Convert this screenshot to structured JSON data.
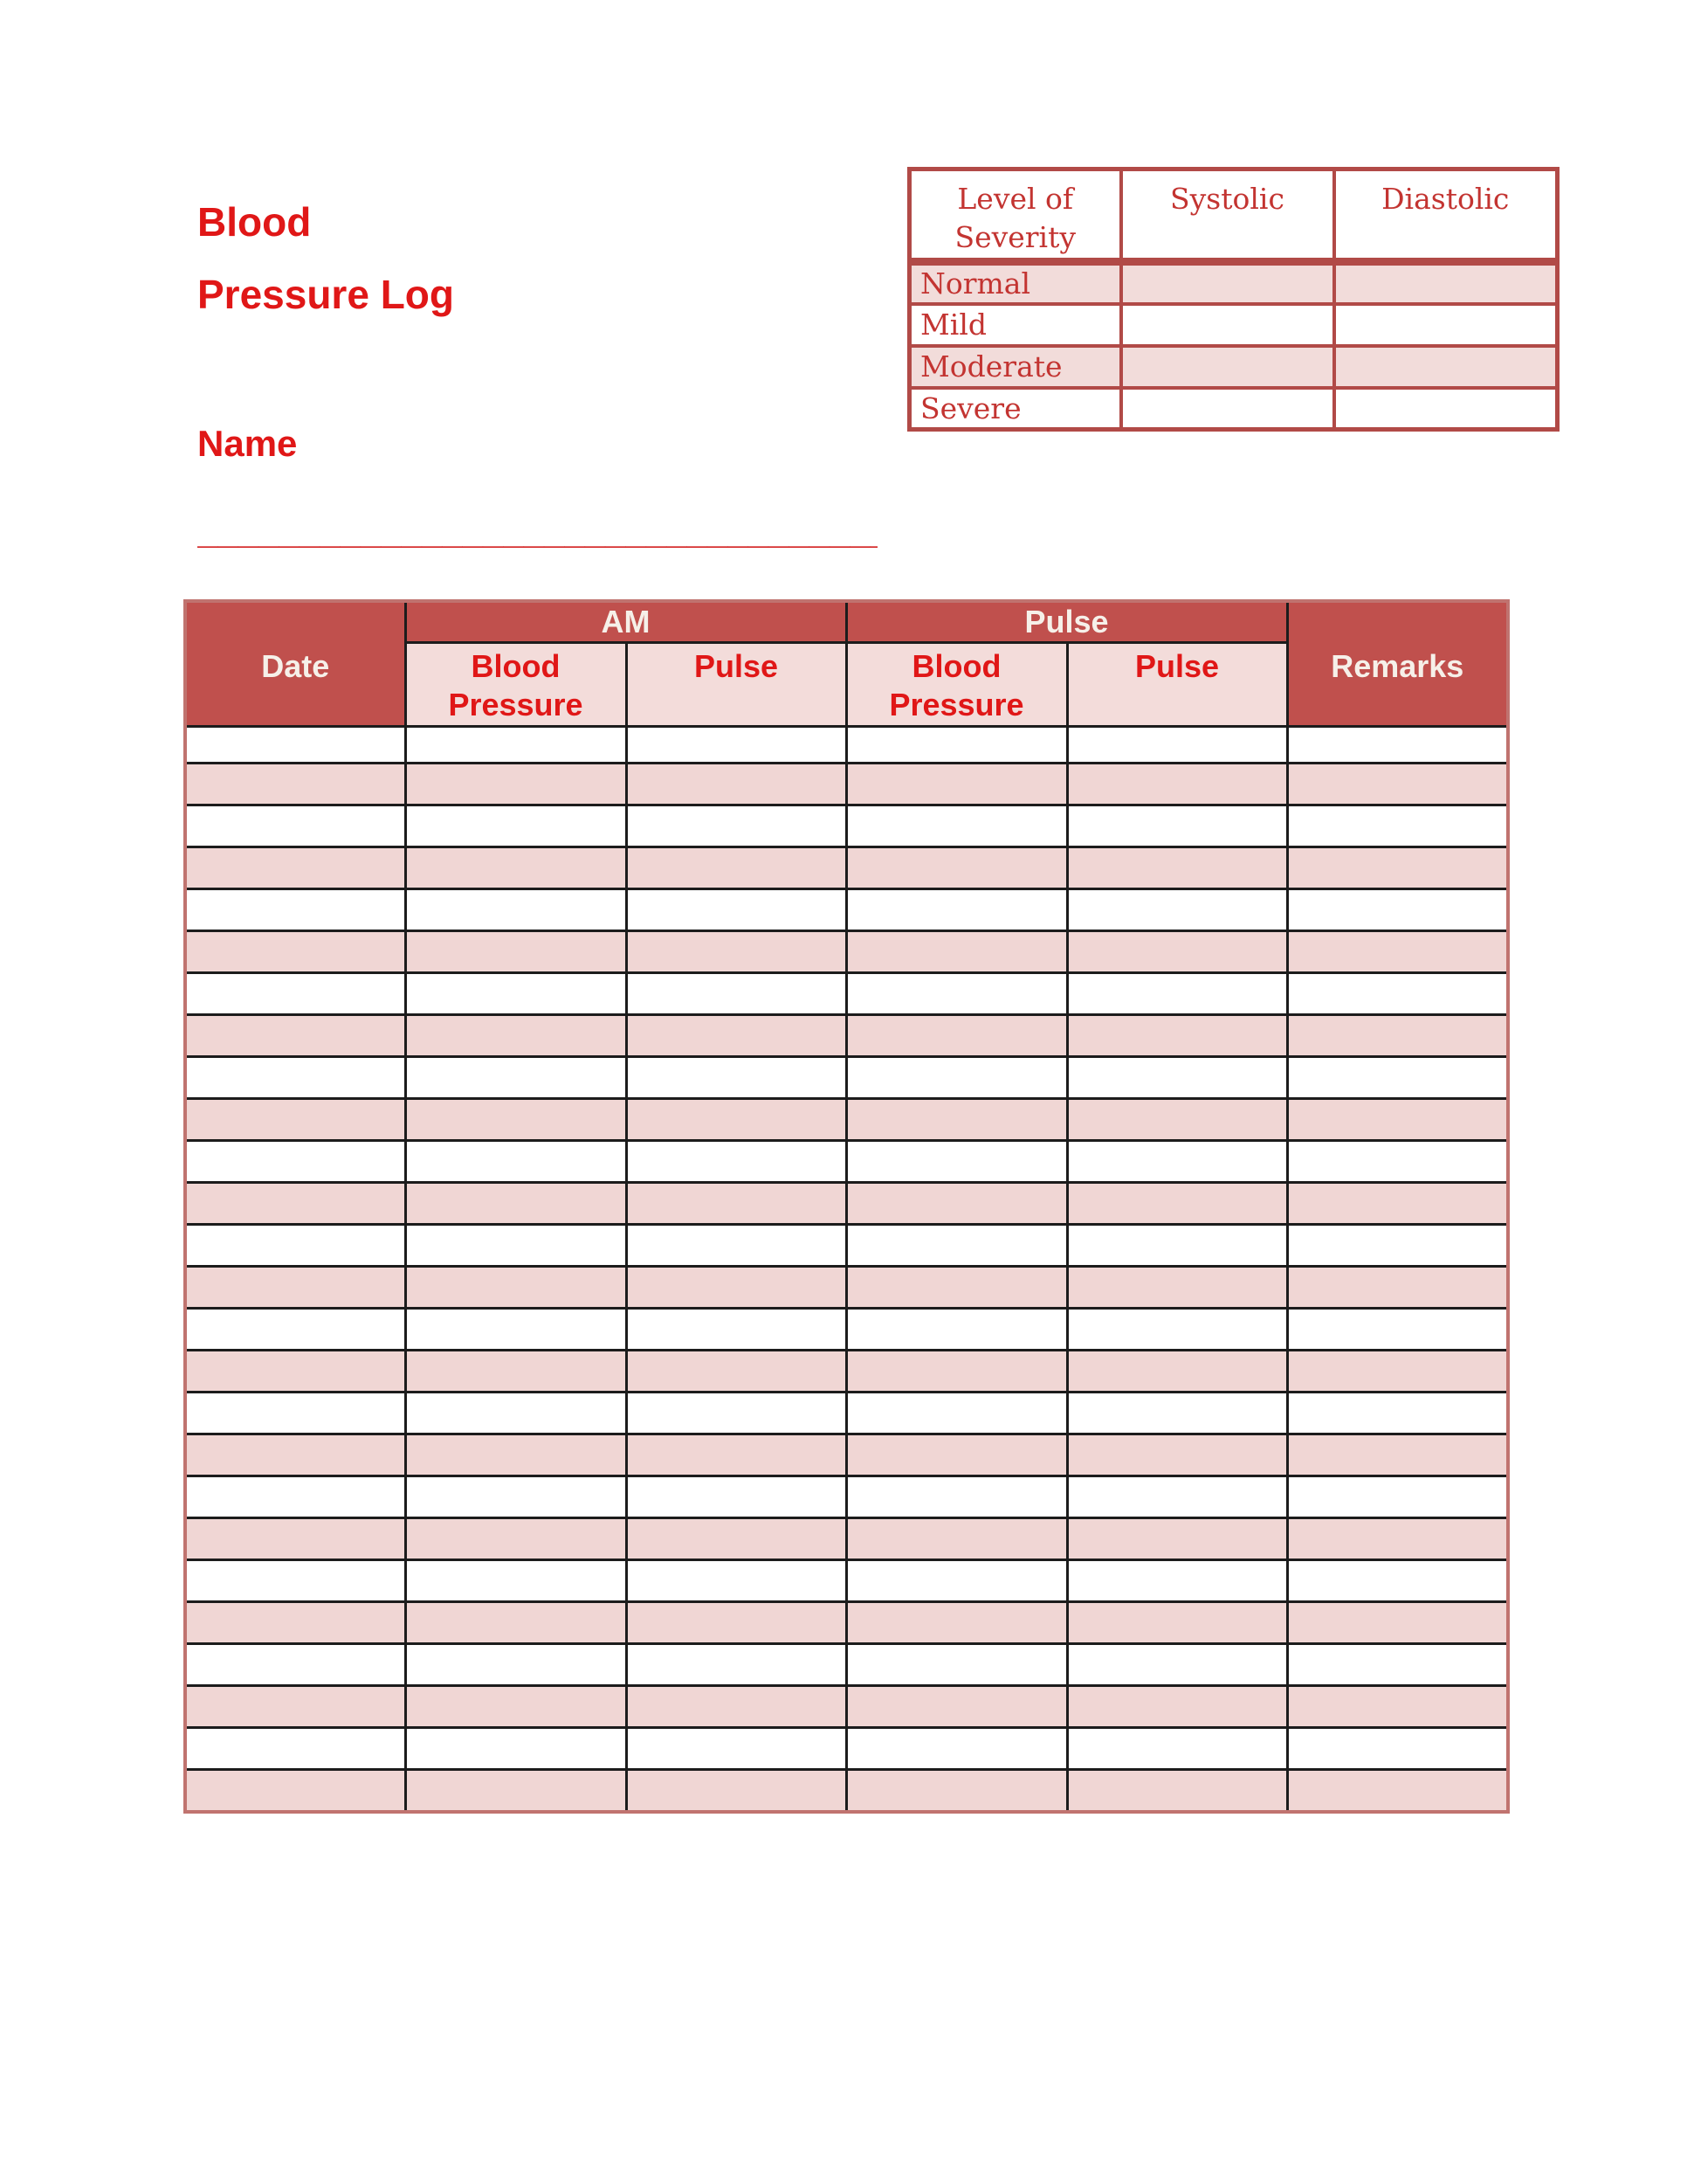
{
  "document": {
    "title_line1": "Blood",
    "title_line2": "Pressure Log",
    "name_label": "Name",
    "name_fill_line": "________________________________________"
  },
  "severity_table": {
    "headers": [
      "Level of Severity",
      "Systolic",
      "Diastolic"
    ],
    "rows": [
      {
        "label": "Normal",
        "systolic": "",
        "diastolic": ""
      },
      {
        "label": "Mild",
        "systolic": "",
        "diastolic": ""
      },
      {
        "label": "Moderate",
        "systolic": "",
        "diastolic": ""
      },
      {
        "label": "Severe",
        "systolic": "",
        "diastolic": ""
      }
    ]
  },
  "log_table": {
    "date_header": "Date",
    "am_group_header": "AM",
    "pm_group_header": "Pulse",
    "remarks_header": "Remarks",
    "sub_headers": [
      "Blood Pressure",
      "Pulse",
      "Blood Pressure",
      "Pulse"
    ],
    "row_count": 26,
    "column_keys": [
      "date",
      "am_blood_pressure",
      "am_pulse",
      "pm_blood_pressure",
      "pm_pulse",
      "remarks"
    ],
    "cells_empty_value": ""
  },
  "colors": {
    "title_red": "#e01717",
    "header_band_bg": "#c0504d",
    "header_band_text": "#f6f0e9",
    "subheader_bg": "#f3dcda",
    "subheader_text": "#e01717",
    "body_stripe_pink": "#f0d6d4",
    "grid_black": "#1c1c1c",
    "outer_border_red": "#c0736f",
    "severity_border": "#b14a47",
    "severity_text": "#c33431",
    "severity_stripe_pink": "#f2dcda"
  }
}
